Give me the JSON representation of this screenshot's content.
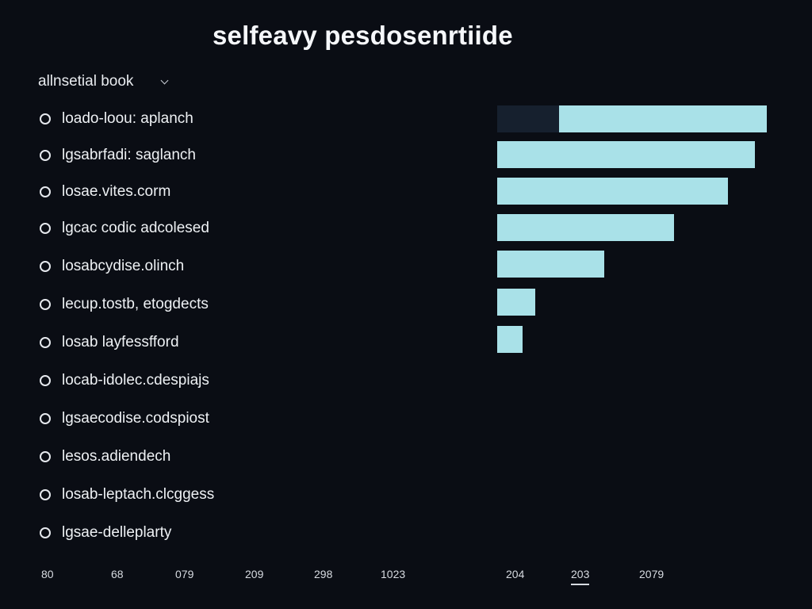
{
  "page": {
    "title": "selfeavy pesdosenrtiide"
  },
  "dropdown": {
    "label": "allnsetial book"
  },
  "list": {
    "items": [
      {
        "label": "loado-loou: aplanch"
      },
      {
        "label": "lgsabrfadi: saglanch"
      },
      {
        "label": "losae.vites.corm"
      },
      {
        "label": "lgcac codic adcolesed"
      },
      {
        "label": "losabcydise.olinch"
      },
      {
        "label": "lecup.tostb, etogdects"
      },
      {
        "label": "losab layfessfford"
      },
      {
        "label": "locab-idolec.cdespiajs"
      },
      {
        "label": "lgsaecodise.codspiost"
      },
      {
        "label": "lesos.adiendech"
      },
      {
        "label": "losab-leptach.clcggess"
      },
      {
        "label": "lgsae-delleplarty"
      }
    ]
  },
  "chart_data": {
    "type": "bar",
    "orientation": "horizontal",
    "title": "selfeavy pesdosenrtiide",
    "categories": [
      "loado-loou: aplanch",
      "lgsabrfadi: saglanch",
      "losae.vites.corm",
      "lgcac codic adcolesed",
      "losabcydise.olinch",
      "lecup.tostb, etogdects",
      "losab layfessfford"
    ],
    "values": [
      100,
      95.6,
      85.6,
      65.6,
      39.7,
      14.1,
      9.4
    ],
    "xlim": [
      0,
      100
    ]
  },
  "axis": {
    "ticks": [
      "80",
      "68",
      "079",
      "209",
      "298",
      "1023",
      "204",
      "203",
      "2079"
    ],
    "selected_tick": "203"
  },
  "colors": {
    "background": "#0a0d14",
    "bar": "#a9e1e8",
    "bar_track": "#16202e",
    "text": "#eef1f4"
  }
}
